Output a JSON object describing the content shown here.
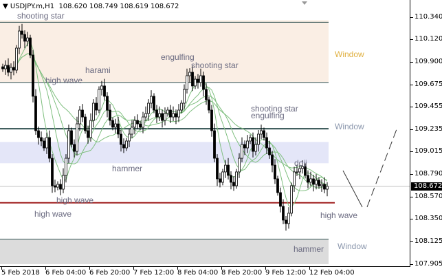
{
  "header": {
    "symbol": "USDJPY.m,H1",
    "ohlc": "108.620 108.749 108.619 108.672"
  },
  "colors": {
    "bull": "#ffffff",
    "bear": "#000000",
    "ma": "#7fbf7f",
    "support": "#a02020",
    "zone_top": "#faeee4",
    "zone_mid": "#e4e6f8",
    "zone_bottom": "#dcdcdc",
    "window_gold": "#e0b040",
    "window_grey": "#8a96ac"
  },
  "patterns": [
    {
      "text": "shooting star"
    },
    {
      "text": "harami"
    },
    {
      "text": "high wave"
    },
    {
      "text": "engulfing"
    },
    {
      "text": "shooting star"
    },
    {
      "text": "shooting star"
    },
    {
      "text": "engulfing"
    },
    {
      "text": "hammer"
    },
    {
      "text": "high wave"
    },
    {
      "text": "high wave"
    },
    {
      "text": "doji"
    },
    {
      "text": "high wave"
    },
    {
      "text": "hammer"
    }
  ],
  "windows": [
    {
      "text": "Window"
    },
    {
      "text": "Window"
    },
    {
      "text": "Window"
    }
  ],
  "chart_data": {
    "type": "candlestick",
    "title": "USDJPY.m,H1",
    "yaxis_ticks": [
      "110.340",
      "110.120",
      "109.900",
      "109.675",
      "109.455",
      "109.235",
      "109.015",
      "108.790",
      "108.570",
      "108.350",
      "108.125",
      "107.905"
    ],
    "ylim": [
      107.905,
      110.34
    ],
    "current_price": "108.672",
    "xaxis_ticks": [
      "5 Feb 2018",
      "6 Feb 04:00",
      "6 Feb 20:00",
      "7 Feb 12:00",
      "8 Feb 04:00",
      "8 Feb 20:00",
      "9 Feb 12:00",
      "12 Feb 04:00"
    ],
    "levels": [
      110.29,
      109.696,
      109.24,
      108.51,
      108.15
    ],
    "zones": [
      [
        109.696,
        110.31
      ],
      [
        108.9,
        109.11
      ],
      [
        107.905,
        108.15
      ]
    ],
    "closes": [
      109.831,
      109.865,
      109.797,
      109.845,
      109.818,
      110.035,
      110.204,
      110.17,
      110.103,
      110.136,
      109.967,
      109.56,
      109.221,
      109.153,
      109.119,
      109.051,
      109.153,
      108.949,
      108.678,
      108.664,
      108.692,
      108.644,
      108.78,
      108.949,
      109.221,
      109.085,
      109.017,
      109.288,
      109.424,
      109.356,
      109.221,
      109.153,
      109.322,
      109.492,
      109.424,
      109.628,
      109.662,
      109.56,
      109.424,
      109.322,
      109.255,
      109.288,
      109.187,
      109.085,
      109.051,
      109.119,
      109.187,
      109.255,
      109.322,
      109.288,
      109.255,
      109.356,
      109.39,
      109.492,
      109.56,
      109.424,
      109.356,
      109.39,
      109.322,
      109.39,
      109.424,
      109.356,
      109.39,
      109.356,
      109.424,
      109.492,
      109.628,
      109.763,
      109.797,
      109.662,
      109.729,
      109.696,
      109.763,
      109.628,
      109.526,
      109.424,
      109.221,
      108.949,
      108.746,
      108.712,
      108.814,
      108.881,
      108.78,
      108.712,
      108.678,
      108.814,
      108.949,
      109.085,
      109.051,
      109.119,
      109.153,
      109.017,
      109.085,
      109.187,
      109.221,
      109.153,
      109.051,
      108.983,
      108.881,
      108.746,
      108.61,
      108.475,
      108.339,
      108.305,
      108.407,
      108.678,
      108.814,
      108.814,
      108.848,
      108.868,
      108.78,
      108.712,
      108.746,
      108.692,
      108.732,
      108.678,
      108.692,
      108.644,
      108.672
    ],
    "ma_periods": [
      20,
      40,
      60,
      90
    ],
    "grid": false
  }
}
